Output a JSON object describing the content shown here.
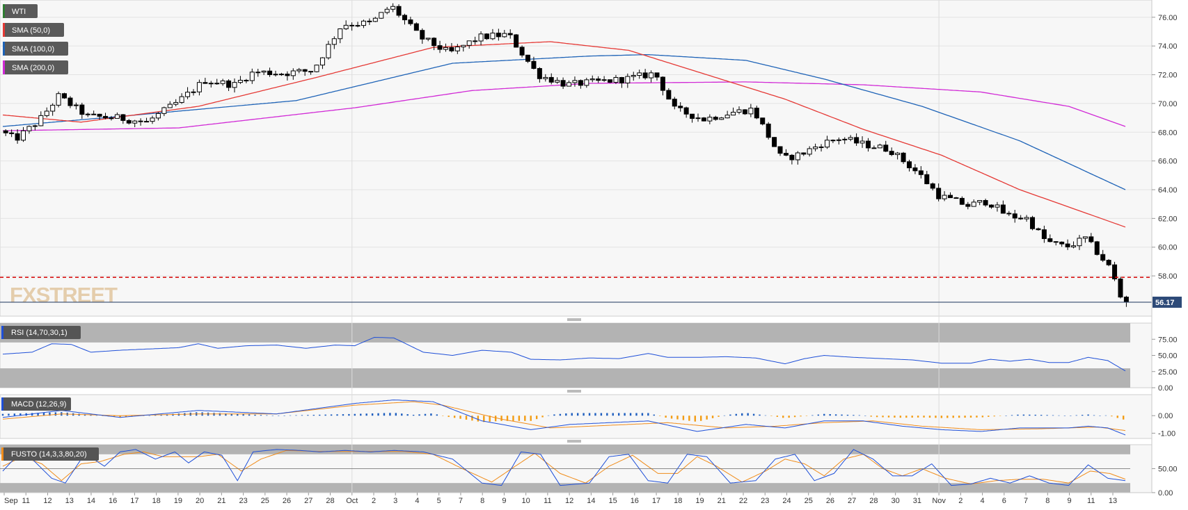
{
  "instrument": "WTI",
  "watermark": "FXSTREET",
  "price_pane": {
    "legend": [
      {
        "label": "WTI",
        "color": "#2e7d32"
      },
      {
        "label": "SMA (50,0)",
        "color": "#e53935"
      },
      {
        "label": "SMA (100,0)",
        "color": "#1e63b7"
      },
      {
        "label": "SMA (200,0)",
        "color": "#d12ad6"
      }
    ],
    "y_ticks": [
      "76.00",
      "74.00",
      "72.00",
      "70.00",
      "68.00",
      "66.00",
      "64.00",
      "62.00",
      "60.00",
      "58.00"
    ],
    "last_price_label": "56.17",
    "last_price": 56.17,
    "support_level": 57.9,
    "ylim": [
      55.2,
      77.2
    ]
  },
  "rsi_pane": {
    "label": "RSI (14,70,30,1)",
    "y_ticks": [
      "75.00",
      "50.00",
      "25.00",
      "0.00"
    ],
    "overbought": 70,
    "oversold": 30,
    "ylim": [
      0,
      100
    ]
  },
  "macd_pane": {
    "label": "MACD (12,26,9)",
    "y_ticks": [
      "0.00",
      "-1.00"
    ],
    "ylim": [
      -1.3,
      1.2
    ]
  },
  "fusto_pane": {
    "label": "FUSTO (14,3,3,80,20)",
    "y_ticks": [
      "50.00",
      "0.00"
    ],
    "upper": 80,
    "lower": 20,
    "ylim": [
      0,
      100
    ]
  },
  "x_labels": [
    "Sep",
    "11",
    "12",
    "13",
    "14",
    "16",
    "17",
    "18",
    "19",
    "20",
    "21",
    "23",
    "25",
    "26",
    "27",
    "28",
    "Oct",
    "2",
    "3",
    "4",
    "5",
    "7",
    "8",
    "9",
    "10",
    "11",
    "12",
    "14",
    "15",
    "16",
    "17",
    "18",
    "19",
    "21",
    "22",
    "23",
    "24",
    "25",
    "26",
    "27",
    "28",
    "30",
    "31",
    "Nov",
    "2",
    "4",
    "6",
    "7",
    "8",
    "9",
    "11",
    "13"
  ],
  "colors": {
    "sma50": "#e53935",
    "sma100": "#1e63b7",
    "sma200": "#d12ad6",
    "support": "#d50000",
    "rsi": "#1e4fd8",
    "macd": "#1e4fd8",
    "signal": "#f08c1a",
    "hist_pos": "#1f5fbf",
    "hist_neg": "#f39c12"
  },
  "chart_data": {
    "type": "candlestick",
    "title": "WTI",
    "ylim": [
      55.2,
      77.2
    ],
    "x_range": [
      "Sep",
      "13"
    ],
    "anchors": [
      [
        0,
        68.1
      ],
      [
        8,
        67.5
      ],
      [
        20,
        68.8
      ],
      [
        30,
        70.5
      ],
      [
        45,
        69.1
      ],
      [
        60,
        69.0
      ],
      [
        75,
        68.7
      ],
      [
        90,
        70.0
      ],
      [
        105,
        71.6
      ],
      [
        120,
        71.3
      ],
      [
        130,
        72.2
      ],
      [
        145,
        72.1
      ],
      [
        160,
        72.3
      ],
      [
        175,
        75.5
      ],
      [
        190,
        75.6
      ],
      [
        200,
        76.8
      ],
      [
        215,
        74.6
      ],
      [
        230,
        73.5
      ],
      [
        245,
        74.6
      ],
      [
        260,
        74.8
      ],
      [
        275,
        72.0
      ],
      [
        290,
        71.3
      ],
      [
        305,
        71.5
      ],
      [
        320,
        71.7
      ],
      [
        335,
        72.1
      ],
      [
        345,
        69.6
      ],
      [
        360,
        68.9
      ],
      [
        375,
        69.4
      ],
      [
        385,
        69.6
      ],
      [
        400,
        66.1
      ],
      [
        410,
        66.5
      ],
      [
        420,
        67.2
      ],
      [
        430,
        67.6
      ],
      [
        440,
        67.2
      ],
      [
        455,
        66.8
      ],
      [
        470,
        65.1
      ],
      [
        480,
        63.6
      ],
      [
        495,
        62.9
      ],
      [
        505,
        63.2
      ],
      [
        515,
        62.2
      ],
      [
        525,
        62.0
      ],
      [
        535,
        60.4
      ],
      [
        545,
        60.0
      ],
      [
        555,
        60.6
      ],
      [
        562,
        59.5
      ],
      [
        568,
        58.5
      ],
      [
        574,
        56.17
      ]
    ],
    "sma50": [
      [
        0,
        69.2
      ],
      [
        40,
        68.7
      ],
      [
        100,
        69.8
      ],
      [
        160,
        71.8
      ],
      [
        220,
        73.9
      ],
      [
        280,
        74.3
      ],
      [
        320,
        73.7
      ],
      [
        360,
        72.0
      ],
      [
        400,
        70.3
      ],
      [
        440,
        68.2
      ],
      [
        480,
        66.4
      ],
      [
        520,
        64.0
      ],
      [
        574,
        61.4
      ]
    ],
    "sma100": [
      [
        0,
        68.4
      ],
      [
        60,
        69.1
      ],
      [
        150,
        70.2
      ],
      [
        230,
        72.8
      ],
      [
        300,
        73.3
      ],
      [
        330,
        73.4
      ],
      [
        380,
        73.0
      ],
      [
        420,
        71.7
      ],
      [
        470,
        69.8
      ],
      [
        520,
        67.4
      ],
      [
        574,
        64.0
      ]
    ],
    "sma200": [
      [
        0,
        68.1
      ],
      [
        90,
        68.3
      ],
      [
        180,
        69.7
      ],
      [
        240,
        70.9
      ],
      [
        300,
        71.4
      ],
      [
        380,
        71.5
      ],
      [
        440,
        71.3
      ],
      [
        500,
        70.8
      ],
      [
        545,
        69.8
      ],
      [
        574,
        68.4
      ]
    ],
    "rsi": [
      [
        0,
        52
      ],
      [
        15,
        55
      ],
      [
        25,
        68
      ],
      [
        35,
        67
      ],
      [
        45,
        55
      ],
      [
        60,
        58
      ],
      [
        75,
        60
      ],
      [
        90,
        62
      ],
      [
        100,
        68
      ],
      [
        110,
        61
      ],
      [
        125,
        65
      ],
      [
        140,
        66
      ],
      [
        155,
        61
      ],
      [
        170,
        66
      ],
      [
        180,
        65
      ],
      [
        190,
        78
      ],
      [
        200,
        77
      ],
      [
        215,
        55
      ],
      [
        230,
        50
      ],
      [
        245,
        58
      ],
      [
        260,
        55
      ],
      [
        270,
        44
      ],
      [
        285,
        43
      ],
      [
        300,
        46
      ],
      [
        315,
        45
      ],
      [
        330,
        53
      ],
      [
        340,
        47
      ],
      [
        355,
        47
      ],
      [
        370,
        48
      ],
      [
        385,
        46
      ],
      [
        400,
        37
      ],
      [
        410,
        45
      ],
      [
        420,
        50
      ],
      [
        435,
        47
      ],
      [
        450,
        45
      ],
      [
        465,
        43
      ],
      [
        480,
        38
      ],
      [
        495,
        38
      ],
      [
        505,
        44
      ],
      [
        515,
        41
      ],
      [
        525,
        44
      ],
      [
        535,
        39
      ],
      [
        545,
        39
      ],
      [
        555,
        47
      ],
      [
        565,
        42
      ],
      [
        574,
        26
      ]
    ],
    "macd": [
      [
        0,
        -0.1
      ],
      [
        30,
        0.3
      ],
      [
        60,
        -0.1
      ],
      [
        100,
        0.3
      ],
      [
        140,
        0.1
      ],
      [
        180,
        0.7
      ],
      [
        200,
        0.9
      ],
      [
        220,
        0.8
      ],
      [
        245,
        -0.3
      ],
      [
        270,
        -0.8
      ],
      [
        290,
        -0.5
      ],
      [
        330,
        -0.3
      ],
      [
        355,
        -0.9
      ],
      [
        380,
        -0.5
      ],
      [
        400,
        -0.7
      ],
      [
        420,
        -0.3
      ],
      [
        440,
        -0.3
      ],
      [
        460,
        -0.6
      ],
      [
        480,
        -0.8
      ],
      [
        500,
        -0.9
      ],
      [
        520,
        -0.7
      ],
      [
        545,
        -0.7
      ],
      [
        555,
        -0.6
      ],
      [
        565,
        -0.7
      ],
      [
        574,
        -1.1
      ]
    ],
    "signal": [
      [
        0,
        -0.2
      ],
      [
        30,
        0.1
      ],
      [
        60,
        0.0
      ],
      [
        100,
        0.1
      ],
      [
        140,
        0.1
      ],
      [
        180,
        0.6
      ],
      [
        210,
        0.8
      ],
      [
        225,
        0.6
      ],
      [
        255,
        -0.2
      ],
      [
        280,
        -0.7
      ],
      [
        300,
        -0.6
      ],
      [
        340,
        -0.4
      ],
      [
        370,
        -0.7
      ],
      [
        395,
        -0.6
      ],
      [
        420,
        -0.4
      ],
      [
        445,
        -0.3
      ],
      [
        470,
        -0.6
      ],
      [
        500,
        -0.8
      ],
      [
        530,
        -0.75
      ],
      [
        560,
        -0.65
      ],
      [
        574,
        -0.85
      ]
    ],
    "fusto_k": [
      [
        0,
        45
      ],
      [
        8,
        80
      ],
      [
        15,
        70
      ],
      [
        25,
        30
      ],
      [
        32,
        20
      ],
      [
        42,
        82
      ],
      [
        52,
        55
      ],
      [
        60,
        85
      ],
      [
        68,
        90
      ],
      [
        78,
        70
      ],
      [
        88,
        85
      ],
      [
        95,
        62
      ],
      [
        103,
        85
      ],
      [
        112,
        78
      ],
      [
        120,
        25
      ],
      [
        128,
        85
      ],
      [
        140,
        90
      ],
      [
        152,
        88
      ],
      [
        162,
        85
      ],
      [
        175,
        88
      ],
      [
        188,
        85
      ],
      [
        200,
        88
      ],
      [
        215,
        85
      ],
      [
        230,
        70
      ],
      [
        245,
        20
      ],
      [
        255,
        15
      ],
      [
        265,
        85
      ],
      [
        275,
        80
      ],
      [
        285,
        15
      ],
      [
        300,
        20
      ],
      [
        310,
        75
      ],
      [
        320,
        80
      ],
      [
        330,
        25
      ],
      [
        340,
        20
      ],
      [
        350,
        80
      ],
      [
        360,
        75
      ],
      [
        372,
        20
      ],
      [
        385,
        25
      ],
      [
        395,
        70
      ],
      [
        405,
        80
      ],
      [
        415,
        25
      ],
      [
        425,
        40
      ],
      [
        435,
        90
      ],
      [
        445,
        70
      ],
      [
        455,
        35
      ],
      [
        465,
        35
      ],
      [
        475,
        60
      ],
      [
        485,
        15
      ],
      [
        495,
        18
      ],
      [
        505,
        30
      ],
      [
        515,
        20
      ],
      [
        525,
        35
      ],
      [
        535,
        20
      ],
      [
        545,
        15
      ],
      [
        555,
        58
      ],
      [
        565,
        30
      ],
      [
        574,
        25
      ]
    ],
    "fusto_d": [
      [
        0,
        55
      ],
      [
        10,
        75
      ],
      [
        20,
        60
      ],
      [
        30,
        25
      ],
      [
        40,
        60
      ],
      [
        50,
        65
      ],
      [
        62,
        80
      ],
      [
        72,
        85
      ],
      [
        82,
        75
      ],
      [
        92,
        75
      ],
      [
        100,
        75
      ],
      [
        110,
        80
      ],
      [
        122,
        45
      ],
      [
        132,
        70
      ],
      [
        145,
        88
      ],
      [
        160,
        86
      ],
      [
        175,
        86
      ],
      [
        190,
        86
      ],
      [
        205,
        86
      ],
      [
        220,
        80
      ],
      [
        235,
        50
      ],
      [
        250,
        22
      ],
      [
        262,
        55
      ],
      [
        272,
        82
      ],
      [
        285,
        40
      ],
      [
        298,
        20
      ],
      [
        310,
        55
      ],
      [
        322,
        78
      ],
      [
        335,
        40
      ],
      [
        345,
        40
      ],
      [
        355,
        75
      ],
      [
        365,
        55
      ],
      [
        378,
        22
      ],
      [
        390,
        45
      ],
      [
        400,
        70
      ],
      [
        410,
        60
      ],
      [
        420,
        35
      ],
      [
        430,
        70
      ],
      [
        440,
        80
      ],
      [
        450,
        50
      ],
      [
        460,
        35
      ],
      [
        470,
        50
      ],
      [
        482,
        30
      ],
      [
        495,
        18
      ],
      [
        508,
        25
      ],
      [
        520,
        28
      ],
      [
        532,
        28
      ],
      [
        545,
        20
      ],
      [
        556,
        45
      ],
      [
        566,
        40
      ],
      [
        574,
        28
      ]
    ]
  }
}
